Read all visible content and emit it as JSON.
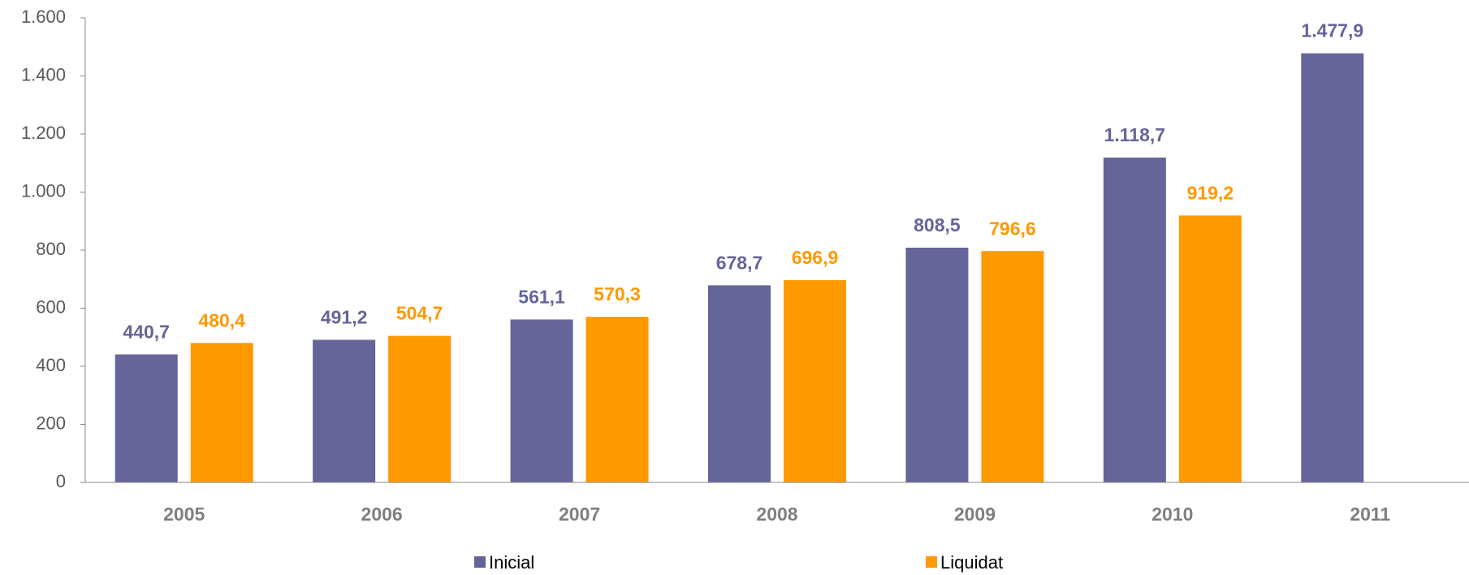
{
  "chart_data": {
    "type": "bar",
    "categories": [
      "2005",
      "2006",
      "2007",
      "2008",
      "2009",
      "2010",
      "2011"
    ],
    "series": [
      {
        "name": "Inicial",
        "color": "#65659a",
        "values": [
          440.7,
          491.2,
          561.1,
          678.7,
          808.5,
          1118.7,
          1477.9
        ],
        "value_labels": [
          "440,7",
          "491,2",
          "561,1",
          "678,7",
          "808,5",
          "1.118,7",
          "1.477,9"
        ]
      },
      {
        "name": "Liquidat",
        "color": "#ff9900",
        "values": [
          480.4,
          504.7,
          570.3,
          696.9,
          796.6,
          919.2,
          null
        ],
        "value_labels": [
          "480,4",
          "504,7",
          "570,3",
          "696,9",
          "796,6",
          "919,2",
          null
        ]
      }
    ],
    "ylim": [
      0,
      1600
    ],
    "yticks": [
      0,
      200,
      400,
      600,
      800,
      {
        "value": 1000,
        "label": "1.000"
      },
      {
        "value": 1200,
        "label": "1.200"
      },
      {
        "value": 1400,
        "label": "1.400"
      },
      {
        "value": 1600,
        "label": "1.600"
      }
    ],
    "grid": false,
    "legend": "bottom"
  }
}
